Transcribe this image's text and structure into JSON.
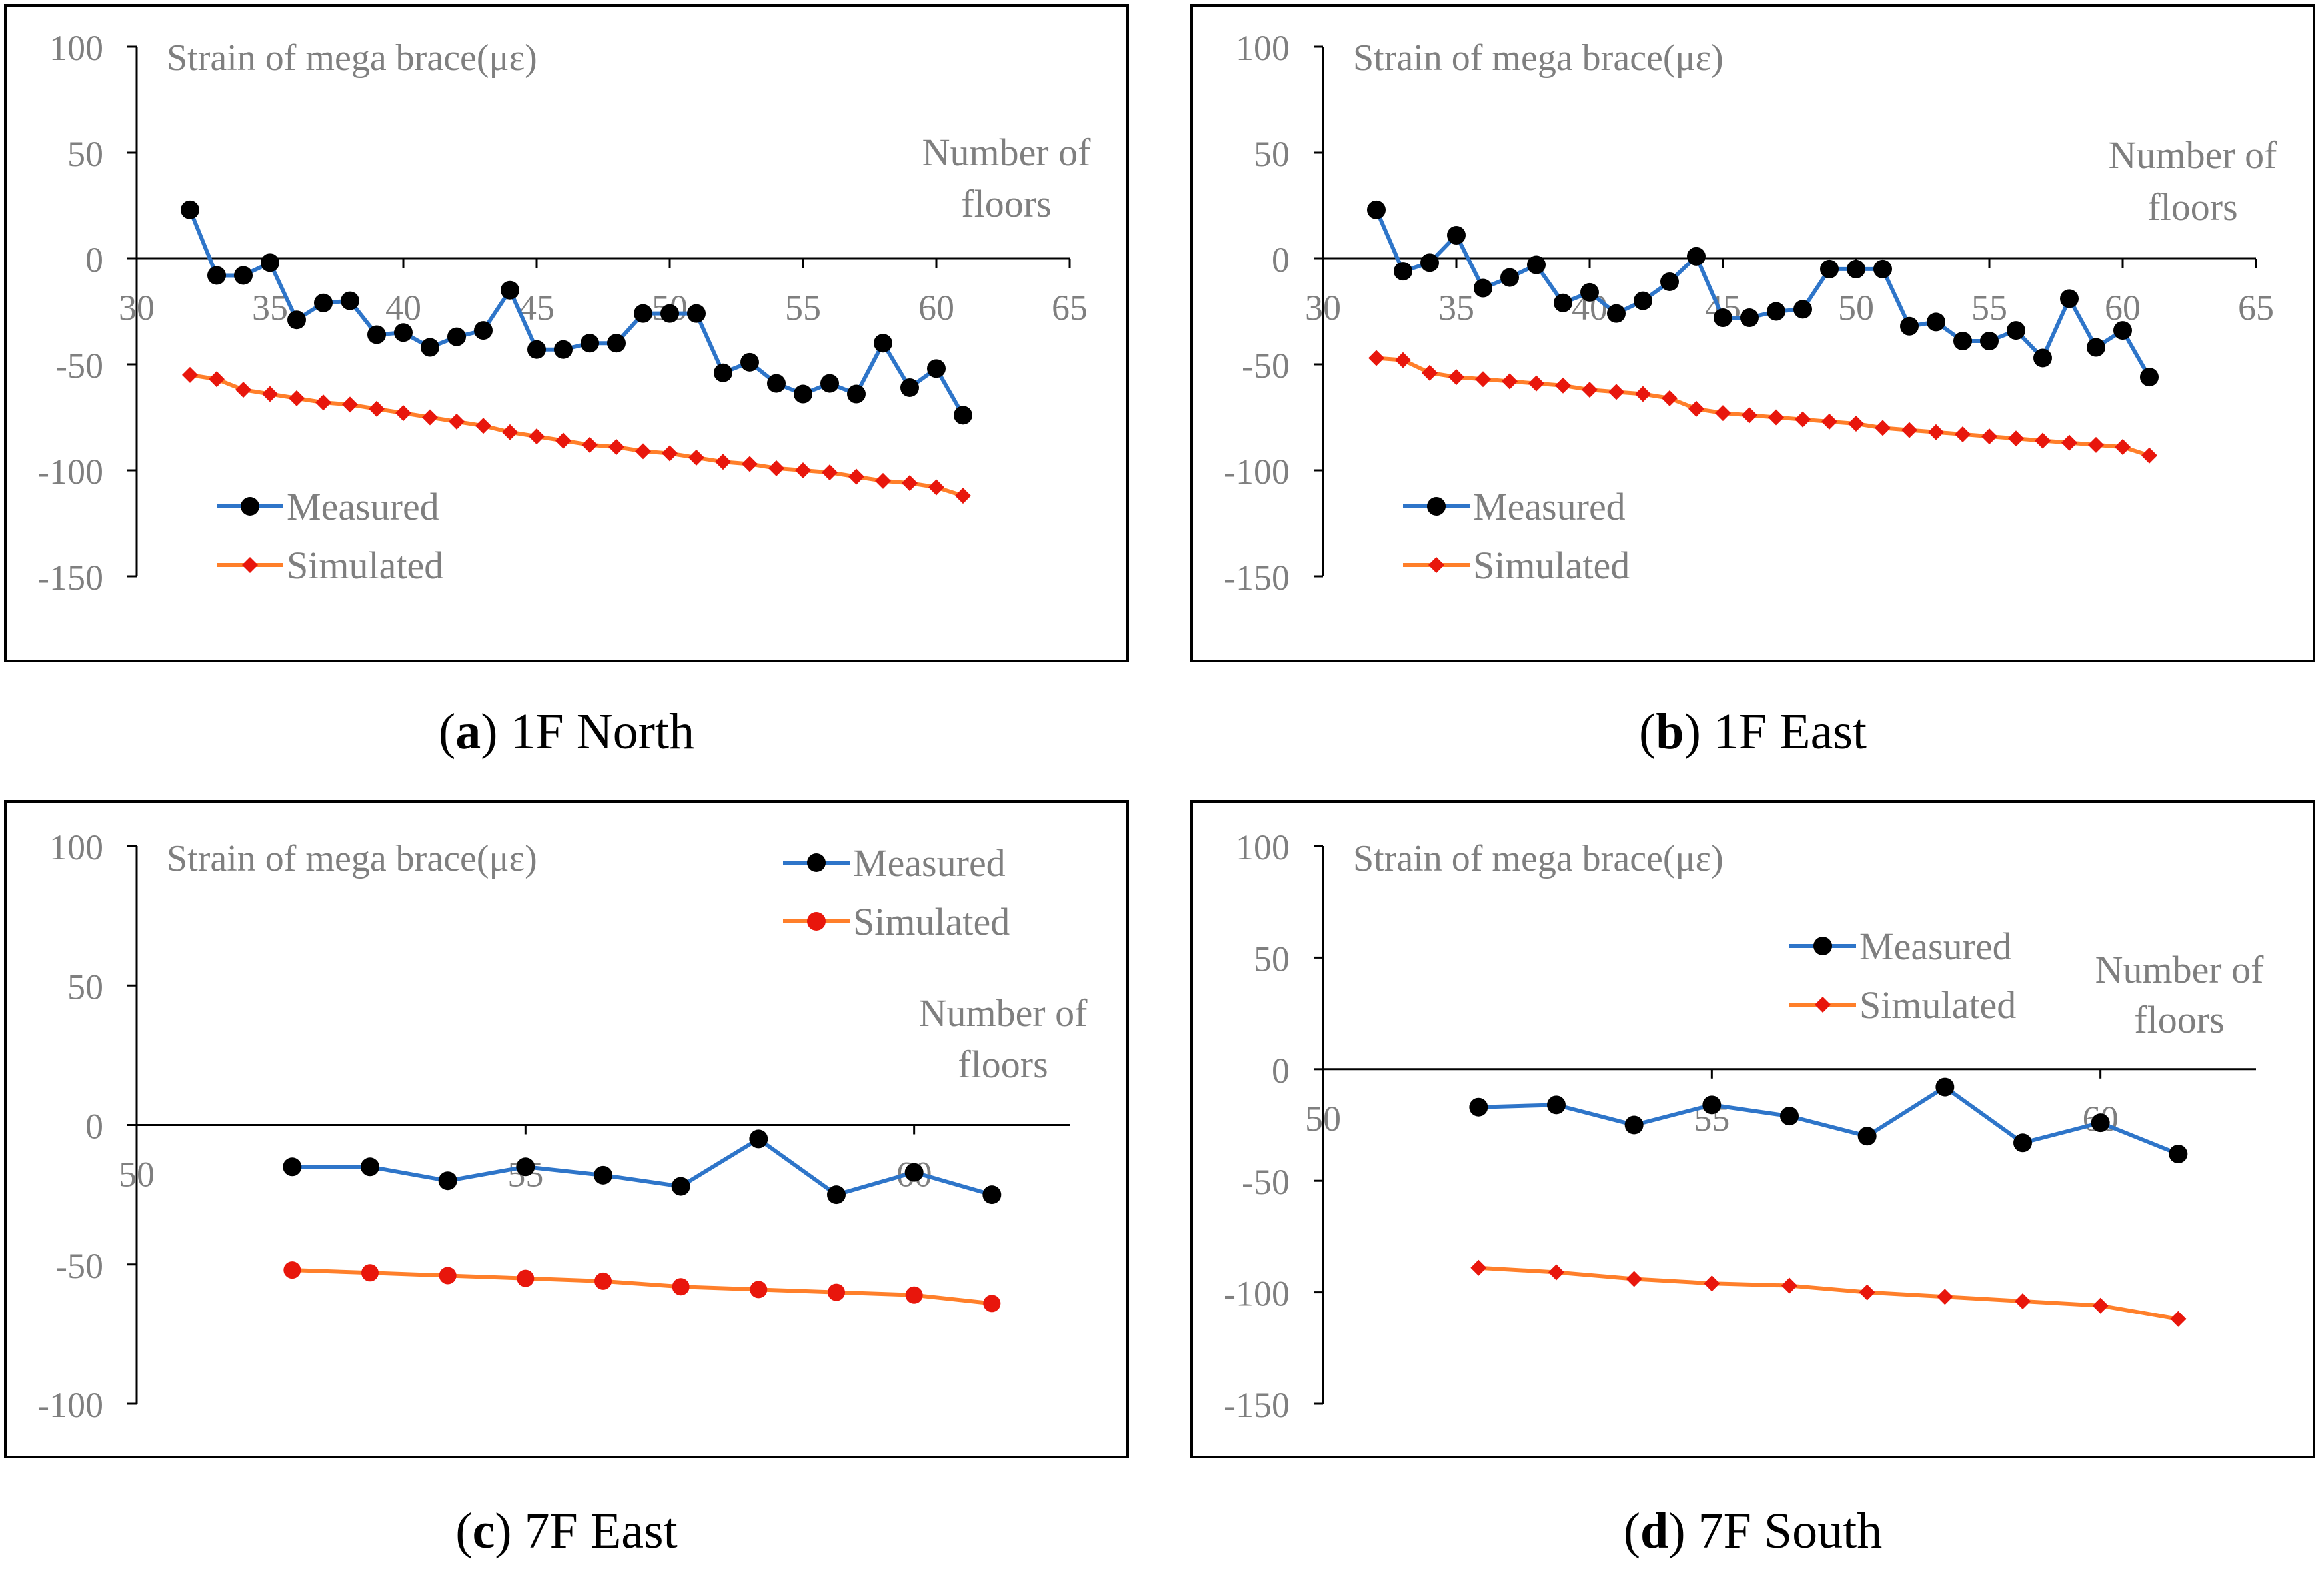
{
  "colors": {
    "measured_line": "#2E75C9",
    "measured_marker": "#000000",
    "simulated_line": "#FF7F2A",
    "simulated_marker": "#E8160C",
    "text": "#7F7F7F",
    "axis": "#000000",
    "frame": "#000000"
  },
  "chart_data": [
    {
      "id": "a",
      "type": "line",
      "caption_letter": "a",
      "caption_text": "1F North",
      "title": "Strain of mega brace(με)",
      "xlabel_line1": "Number of",
      "xlabel_line2": "floors",
      "xlim": [
        30,
        65
      ],
      "ylim": [
        -150,
        100
      ],
      "xticks": [
        30,
        35,
        40,
        45,
        50,
        55,
        60,
        65
      ],
      "yticks": [
        100,
        50,
        0,
        -50,
        -100,
        -150
      ],
      "legend_position": "bottom-left",
      "series": [
        {
          "name": "Measured",
          "marker": "circle",
          "x": [
            32,
            33,
            34,
            35,
            36,
            37,
            38,
            39,
            40,
            41,
            42,
            43,
            44,
            45,
            46,
            47,
            48,
            49,
            50,
            51,
            52,
            53,
            54,
            55,
            56,
            57,
            58,
            59,
            60,
            61
          ],
          "y": [
            23,
            -8,
            -8,
            -2,
            -29,
            -21,
            -20,
            -36,
            -35,
            -42,
            -37,
            -34,
            -15,
            -43,
            -43,
            -40,
            -40,
            -26,
            -26,
            -26,
            -54,
            -49,
            -59,
            -64,
            -59,
            -64,
            -40,
            -61,
            -52,
            -74
          ]
        },
        {
          "name": "Simulated",
          "marker": "diamond",
          "x": [
            32,
            33,
            34,
            35,
            36,
            37,
            38,
            39,
            40,
            41,
            42,
            43,
            44,
            45,
            46,
            47,
            48,
            49,
            50,
            51,
            52,
            53,
            54,
            55,
            56,
            57,
            58,
            59,
            60,
            61
          ],
          "y": [
            -55,
            -57,
            -62,
            -64,
            -66,
            -68,
            -69,
            -71,
            -73,
            -75,
            -77,
            -79,
            -82,
            -84,
            -86,
            -88,
            -89,
            -91,
            -92,
            -94,
            -96,
            -97,
            -99,
            -100,
            -101,
            -103,
            -105,
            -106,
            -108,
            -112
          ]
        }
      ]
    },
    {
      "id": "b",
      "type": "line",
      "caption_letter": "b",
      "caption_text": "1F East",
      "title": "Strain of mega brace(με)",
      "xlabel_line1": "Number of",
      "xlabel_line2": "floors",
      "xlim": [
        30,
        65
      ],
      "ylim": [
        -150,
        100
      ],
      "xticks": [
        30,
        35,
        40,
        45,
        50,
        55,
        60,
        65
      ],
      "yticks": [
        100,
        50,
        0,
        -50,
        -100,
        -150
      ],
      "legend_position": "bottom-left",
      "series": [
        {
          "name": "Measured",
          "marker": "circle",
          "x": [
            32,
            33,
            34,
            35,
            36,
            37,
            38,
            39,
            40,
            41,
            42,
            43,
            44,
            45,
            46,
            47,
            48,
            49,
            50,
            51,
            52,
            53,
            54,
            55,
            56,
            57,
            58,
            59,
            60,
            61
          ],
          "y": [
            23,
            -6,
            -2,
            11,
            -14,
            -9,
            -3,
            -21,
            -16,
            -26,
            -20,
            -11,
            1,
            -28,
            -28,
            -25,
            -24,
            -5,
            -5,
            -5,
            -32,
            -30,
            -39,
            -39,
            -34,
            -47,
            -19,
            -42,
            -34,
            -56
          ]
        },
        {
          "name": "Simulated",
          "marker": "diamond",
          "x": [
            32,
            33,
            34,
            35,
            36,
            37,
            38,
            39,
            40,
            41,
            42,
            43,
            44,
            45,
            46,
            47,
            48,
            49,
            50,
            51,
            52,
            53,
            54,
            55,
            56,
            57,
            58,
            59,
            60,
            61
          ],
          "y": [
            -47,
            -48,
            -54,
            -56,
            -57,
            -58,
            -59,
            -60,
            -62,
            -63,
            -64,
            -66,
            -71,
            -73,
            -74,
            -75,
            -76,
            -77,
            -78,
            -80,
            -81,
            -82,
            -83,
            -84,
            -85,
            -86,
            -87,
            -88,
            -89,
            -93
          ]
        }
      ]
    },
    {
      "id": "c",
      "type": "line",
      "caption_letter": "c",
      "caption_text": "7F East",
      "title": "Strain of mega brace(με)",
      "xlabel_line1": "Number of",
      "xlabel_line2": "floors",
      "xlim": [
        50,
        62
      ],
      "ylim": [
        -100,
        100
      ],
      "xticks": [
        50,
        55,
        60
      ],
      "yticks": [
        100,
        50,
        0,
        -50,
        -100
      ],
      "legend_position": "top-right",
      "series": [
        {
          "name": "Measured",
          "marker": "circle",
          "x": [
            52,
            53,
            54,
            55,
            56,
            57,
            58,
            59,
            60,
            61
          ],
          "y": [
            -15,
            -15,
            -20,
            -15,
            -18,
            -22,
            -5,
            -25,
            -17,
            -25
          ]
        },
        {
          "name": "Simulated",
          "marker": "circle",
          "x": [
            52,
            53,
            54,
            55,
            56,
            57,
            58,
            59,
            60,
            61
          ],
          "y": [
            -52,
            -53,
            -54,
            -55,
            -56,
            -58,
            -59,
            -60,
            -61,
            -64
          ]
        }
      ]
    },
    {
      "id": "d",
      "type": "line",
      "caption_letter": "d",
      "caption_text": "7F South",
      "title": "Strain of mega brace(με)",
      "xlabel_line1": "Number of",
      "xlabel_line2": "floors",
      "xlim": [
        50,
        62
      ],
      "ylim": [
        -150,
        100
      ],
      "xticks": [
        50,
        55,
        60
      ],
      "yticks": [
        100,
        50,
        0,
        -50,
        -100,
        -150
      ],
      "legend_position": "top-center",
      "series": [
        {
          "name": "Measured",
          "marker": "circle",
          "x": [
            52,
            53,
            54,
            55,
            56,
            57,
            58,
            59,
            60,
            61
          ],
          "y": [
            -17,
            -16,
            -25,
            -16,
            -21,
            -30,
            -8,
            -33,
            -24,
            -38
          ]
        },
        {
          "name": "Simulated",
          "marker": "diamond",
          "x": [
            52,
            53,
            54,
            55,
            56,
            57,
            58,
            59,
            60,
            61
          ],
          "y": [
            -89,
            -91,
            -94,
            -96,
            -97,
            -100,
            -102,
            -104,
            -106,
            -112
          ]
        }
      ]
    }
  ]
}
